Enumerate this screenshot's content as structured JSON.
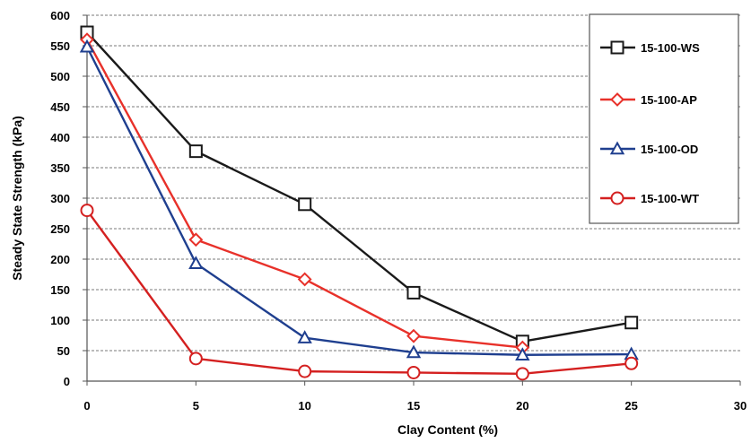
{
  "chart_data": {
    "type": "line",
    "title": "",
    "xlabel": "Clay Content (%)",
    "ylabel": "Steady State Strength (kPa)",
    "xlim": [
      0,
      30
    ],
    "ylim": [
      0,
      600
    ],
    "xticks": [
      0,
      5,
      10,
      15,
      20,
      25,
      30
    ],
    "yticks": [
      0,
      50,
      100,
      150,
      200,
      250,
      300,
      350,
      400,
      450,
      500,
      550,
      600
    ],
    "x": [
      0,
      5,
      10,
      15,
      20,
      25
    ],
    "grid": "horizontal dashed",
    "legend_position": "top-right",
    "series": [
      {
        "name": "15-100-WS",
        "color": "#1a1a1a",
        "marker": "square",
        "values": [
          572,
          377,
          290,
          145,
          65,
          96
        ]
      },
      {
        "name": "15-100-AP",
        "color": "#e8312a",
        "marker": "diamond",
        "values": [
          560,
          232,
          167,
          74,
          55,
          null
        ]
      },
      {
        "name": "15-100-OD",
        "color": "#1f3f8f",
        "marker": "triangle",
        "values": [
          548,
          193,
          71,
          47,
          43,
          44
        ]
      },
      {
        "name": "15-100-WT",
        "color": "#d42020",
        "marker": "circle",
        "values": [
          280,
          37,
          16,
          14,
          12,
          29
        ]
      }
    ]
  }
}
